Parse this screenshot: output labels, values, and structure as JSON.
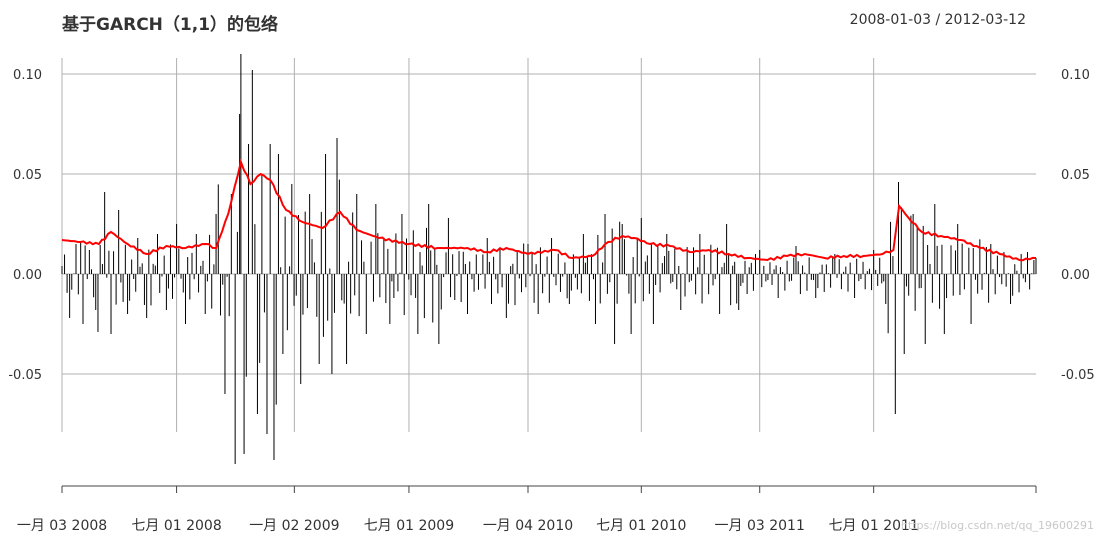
{
  "title": "基于GARCH（1,1）的包络",
  "date_range": "2008-01-03 / 2012-03-12",
  "watermark": "https://blog.csdn.net/qq_19600291",
  "colors": {
    "returns": "#000000",
    "envelope": "#ff0000",
    "grid": "#b0b0b0"
  },
  "chart_data": {
    "type": "line",
    "title": "基于GARCH（1,1）的包络",
    "x_start": "2008-01-03",
    "x_end": "2012-03-12",
    "ylim": [
      -0.1,
      0.1
    ],
    "y_ticks": [
      0.1,
      0.05,
      0.0,
      -0.05
    ],
    "y_tick_labels": [
      "0.10",
      "0.05",
      "0.00",
      "-0.05"
    ],
    "x_ticks": [
      {
        "date": "2008-01-03",
        "label": "一月 03 2008"
      },
      {
        "date": "2008-07-01",
        "label": "七月 01 2008"
      },
      {
        "date": "2009-01-02",
        "label": "一月 02 2009"
      },
      {
        "date": "2009-07-01",
        "label": "七月 01 2009"
      },
      {
        "date": "2010-01-04",
        "label": "一月 04 2010"
      },
      {
        "date": "2010-07-01",
        "label": "七月 01 2010"
      },
      {
        "date": "2011-01-03",
        "label": "一月 03 2011"
      },
      {
        "date": "2011-07-01",
        "label": "七月 01 2011"
      }
    ],
    "grid": true,
    "series": [
      {
        "style": "vertical-lines",
        "points": [
          [
            "2008-01-03",
            0.004
          ],
          [
            "2008-01-15",
            -0.022
          ],
          [
            "2008-01-25",
            0.015
          ],
          [
            "2008-02-05",
            -0.025
          ],
          [
            "2008-02-15",
            0.012
          ],
          [
            "2008-02-25",
            -0.018
          ],
          [
            "2008-03-10",
            0.041
          ],
          [
            "2008-03-20",
            -0.03
          ],
          [
            "2008-04-01",
            0.032
          ],
          [
            "2008-04-15",
            -0.02
          ],
          [
            "2008-05-01",
            0.018
          ],
          [
            "2008-05-15",
            -0.022
          ],
          [
            "2008-06-01",
            0.02
          ],
          [
            "2008-06-15",
            -0.018
          ],
          [
            "2008-07-01",
            0.025
          ],
          [
            "2008-07-15",
            -0.025
          ],
          [
            "2008-08-01",
            0.02
          ],
          [
            "2008-08-15",
            -0.02
          ],
          [
            "2008-09-01",
            0.03
          ],
          [
            "2008-09-15",
            -0.06
          ],
          [
            "2008-09-25",
            0.04
          ],
          [
            "2008-10-01",
            -0.095
          ],
          [
            "2008-10-08",
            0.08
          ],
          [
            "2008-10-10",
            0.11
          ],
          [
            "2008-10-15",
            -0.09
          ],
          [
            "2008-10-22",
            0.065
          ],
          [
            "2008-10-28",
            0.102
          ],
          [
            "2008-11-05",
            -0.07
          ],
          [
            "2008-11-12",
            0.05
          ],
          [
            "2008-11-20",
            -0.08
          ],
          [
            "2008-11-25",
            0.065
          ],
          [
            "2008-12-01",
            -0.093
          ],
          [
            "2008-12-08",
            0.06
          ],
          [
            "2008-12-15",
            -0.04
          ],
          [
            "2008-12-29",
            0.045
          ],
          [
            "2009-01-12",
            -0.055
          ],
          [
            "2009-01-26",
            0.04
          ],
          [
            "2009-02-10",
            -0.045
          ],
          [
            "2009-02-20",
            0.06
          ],
          [
            "2009-03-02",
            -0.05
          ],
          [
            "2009-03-10",
            0.068
          ],
          [
            "2009-03-25",
            -0.045
          ],
          [
            "2009-04-10",
            0.04
          ],
          [
            "2009-04-25",
            -0.03
          ],
          [
            "2009-05-10",
            0.035
          ],
          [
            "2009-06-01",
            -0.025
          ],
          [
            "2009-06-20",
            0.03
          ],
          [
            "2009-07-15",
            -0.03
          ],
          [
            "2009-08-01",
            0.035
          ],
          [
            "2009-08-17",
            -0.035
          ],
          [
            "2009-09-01",
            0.028
          ],
          [
            "2009-10-01",
            -0.02
          ],
          [
            "2009-11-01",
            0.018
          ],
          [
            "2009-12-01",
            -0.022
          ],
          [
            "2010-01-04",
            0.015
          ],
          [
            "2010-01-20",
            -0.02
          ],
          [
            "2010-02-10",
            0.018
          ],
          [
            "2010-03-10",
            -0.015
          ],
          [
            "2010-04-01",
            0.02
          ],
          [
            "2010-04-20",
            -0.025
          ],
          [
            "2010-05-05",
            0.03
          ],
          [
            "2010-05-20",
            -0.035
          ],
          [
            "2010-06-01",
            0.025
          ],
          [
            "2010-06-15",
            -0.03
          ],
          [
            "2010-07-01",
            0.028
          ],
          [
            "2010-07-20",
            -0.025
          ],
          [
            "2010-08-10",
            0.02
          ],
          [
            "2010-09-01",
            -0.018
          ],
          [
            "2010-10-01",
            0.02
          ],
          [
            "2010-11-01",
            -0.02
          ],
          [
            "2010-11-12",
            0.025
          ],
          [
            "2010-12-01",
            -0.018
          ],
          [
            "2011-01-03",
            0.012
          ],
          [
            "2011-02-01",
            -0.012
          ],
          [
            "2011-03-01",
            0.014
          ],
          [
            "2011-04-01",
            -0.012
          ],
          [
            "2011-05-01",
            0.01
          ],
          [
            "2011-06-01",
            -0.012
          ],
          [
            "2011-07-01",
            0.012
          ],
          [
            "2011-07-20",
            -0.015
          ],
          [
            "2011-08-04",
            -0.07
          ],
          [
            "2011-08-09",
            0.046
          ],
          [
            "2011-08-18",
            -0.04
          ],
          [
            "2011-09-01",
            0.03
          ],
          [
            "2011-09-20",
            -0.035
          ],
          [
            "2011-10-05",
            0.035
          ],
          [
            "2011-10-20",
            -0.03
          ],
          [
            "2011-11-10",
            0.025
          ],
          [
            "2011-12-01",
            -0.025
          ],
          [
            "2012-01-01",
            0.015
          ],
          [
            "2012-02-01",
            -0.015
          ],
          [
            "2012-03-12",
            0.008
          ]
        ]
      },
      {
        "style": "line",
        "points": [
          [
            "2008-01-03",
            0.017
          ],
          [
            "2008-02-01",
            0.016
          ],
          [
            "2008-03-01",
            0.015
          ],
          [
            "2008-03-20",
            0.021
          ],
          [
            "2008-04-15",
            0.015
          ],
          [
            "2008-05-15",
            0.01
          ],
          [
            "2008-06-15",
            0.014
          ],
          [
            "2008-07-15",
            0.013
          ],
          [
            "2008-08-15",
            0.015
          ],
          [
            "2008-09-01",
            0.013
          ],
          [
            "2008-09-20",
            0.03
          ],
          [
            "2008-10-10",
            0.056
          ],
          [
            "2008-10-25",
            0.045
          ],
          [
            "2008-11-10",
            0.05
          ],
          [
            "2008-11-25",
            0.047
          ],
          [
            "2008-12-20",
            0.032
          ],
          [
            "2009-01-15",
            0.026
          ],
          [
            "2009-02-15",
            0.023
          ],
          [
            "2009-03-15",
            0.031
          ],
          [
            "2009-04-10",
            0.022
          ],
          [
            "2009-05-15",
            0.018
          ],
          [
            "2009-07-01",
            0.015
          ],
          [
            "2009-08-15",
            0.013
          ],
          [
            "2009-10-01",
            0.013
          ],
          [
            "2009-11-01",
            0.011
          ],
          [
            "2009-12-01",
            0.013
          ],
          [
            "2010-01-04",
            0.01
          ],
          [
            "2010-02-15",
            0.012
          ],
          [
            "2010-03-15",
            0.008
          ],
          [
            "2010-04-15",
            0.009
          ],
          [
            "2010-05-10",
            0.016
          ],
          [
            "2010-06-01",
            0.019
          ],
          [
            "2010-06-20",
            0.018
          ],
          [
            "2010-07-15",
            0.015
          ],
          [
            "2010-08-15",
            0.014
          ],
          [
            "2010-09-15",
            0.011
          ],
          [
            "2010-10-15",
            0.012
          ],
          [
            "2010-11-15",
            0.01
          ],
          [
            "2010-12-15",
            0.008
          ],
          [
            "2011-01-15",
            0.007
          ],
          [
            "2011-02-15",
            0.009
          ],
          [
            "2011-03-15",
            0.01
          ],
          [
            "2011-04-15",
            0.008
          ],
          [
            "2011-05-15",
            0.009
          ],
          [
            "2011-06-15",
            0.009
          ],
          [
            "2011-07-15",
            0.01
          ],
          [
            "2011-08-01",
            0.012
          ],
          [
            "2011-08-10",
            0.034
          ],
          [
            "2011-08-25",
            0.028
          ],
          [
            "2011-09-15",
            0.021
          ],
          [
            "2011-10-15",
            0.019
          ],
          [
            "2011-11-15",
            0.017
          ],
          [
            "2011-12-15",
            0.013
          ],
          [
            "2012-01-15",
            0.01
          ],
          [
            "2012-02-15",
            0.007
          ],
          [
            "2012-03-12",
            0.008
          ]
        ]
      }
    ]
  }
}
